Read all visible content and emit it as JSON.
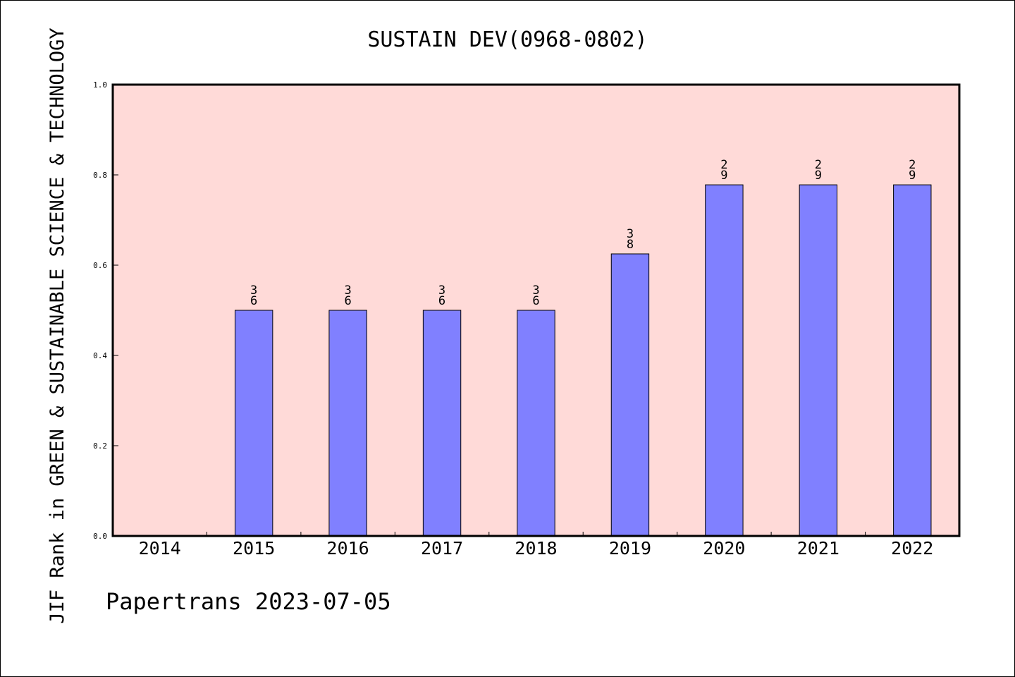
{
  "chart_data": {
    "type": "bar",
    "title": "SUSTAIN DEV(0968-0802)",
    "xlabel": "",
    "ylabel": "JIF Rank in GREEN & SUSTAINABLE SCIENCE & TECHNOLOGY",
    "categories": [
      "2014",
      "2015",
      "2016",
      "2017",
      "2018",
      "2019",
      "2020",
      "2021",
      "2022"
    ],
    "values": [
      null,
      0.5,
      0.5,
      0.5,
      0.5,
      0.625,
      0.778,
      0.778,
      0.778
    ],
    "bar_labels": [
      "",
      "3\n6",
      "3\n6",
      "3\n6",
      "3\n6",
      "3\n8",
      "2\n9",
      "2\n9",
      "2\n9"
    ],
    "ylim": [
      0,
      1.0
    ],
    "yticks": [
      "0.0",
      "0.2",
      "0.4",
      "0.6",
      "0.8",
      "1.0"
    ],
    "grid": false,
    "colors": {
      "plot_background": "#ffdad8",
      "bar_fill": "#8080ff",
      "bar_edge": "#000000"
    }
  },
  "footer": {
    "watermark": "Papertrans 2023-07-05"
  }
}
